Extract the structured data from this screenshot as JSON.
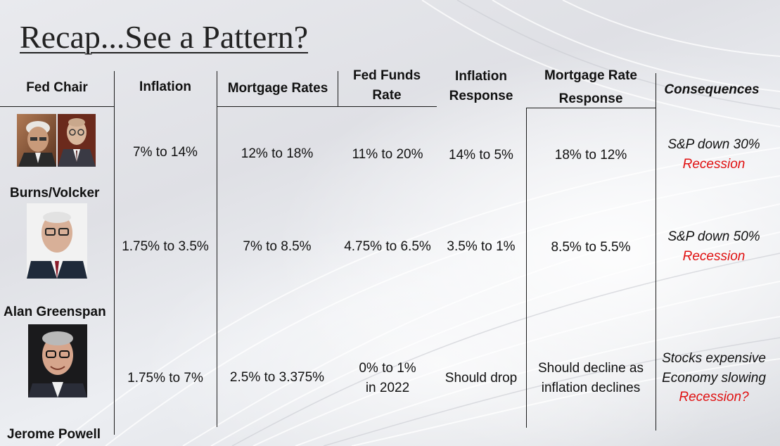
{
  "title": "Recap...See a Pattern?",
  "headers": {
    "fed_chair": "Fed Chair",
    "inflation": "Inflation",
    "mortgage_rates": "Mortgage Rates",
    "fed_funds_line1": "Fed Funds",
    "fed_funds_line2": "Rate",
    "inflation_resp_line1": "Inflation",
    "inflation_resp_line2": "Response",
    "mortgage_resp_line1": "Mortgage Rate",
    "mortgage_resp_line2": "Response",
    "consequences": "Consequences"
  },
  "rows": [
    {
      "chair": "Burns/Volcker",
      "inflation": "7% to 14%",
      "mortgage_rates": "12% to 18%",
      "fed_funds": "11% to 20%",
      "fed_funds_line2": "",
      "inflation_response": "14% to 5%",
      "mortgage_response_line1": "18% to 12%",
      "mortgage_response_line2": "",
      "consequences": [
        "S&P down 30%"
      ],
      "consequence_red": "Recession"
    },
    {
      "chair": "Alan Greenspan",
      "inflation": "1.75% to 3.5%",
      "mortgage_rates": "7% to 8.5%",
      "fed_funds": "4.75% to 6.5%",
      "fed_funds_line2": "",
      "inflation_response": "3.5% to 1%",
      "mortgage_response_line1": "8.5% to 5.5%",
      "mortgage_response_line2": "",
      "consequences": [
        "S&P down 50%"
      ],
      "consequence_red": "Recession"
    },
    {
      "chair": "Jerome Powell",
      "inflation": "1.75% to 7%",
      "mortgage_rates": "2.5% to 3.375%",
      "fed_funds": "0% to 1%",
      "fed_funds_line2": "in 2022",
      "inflation_response": "Should drop",
      "mortgage_response_line1": "Should decline as",
      "mortgage_response_line2": "inflation declines",
      "consequences": [
        "Stocks expensive",
        "Economy slowing"
      ],
      "consequence_red": "Recession?"
    }
  ],
  "colors": {
    "red": "#e01010",
    "text": "#111111"
  }
}
